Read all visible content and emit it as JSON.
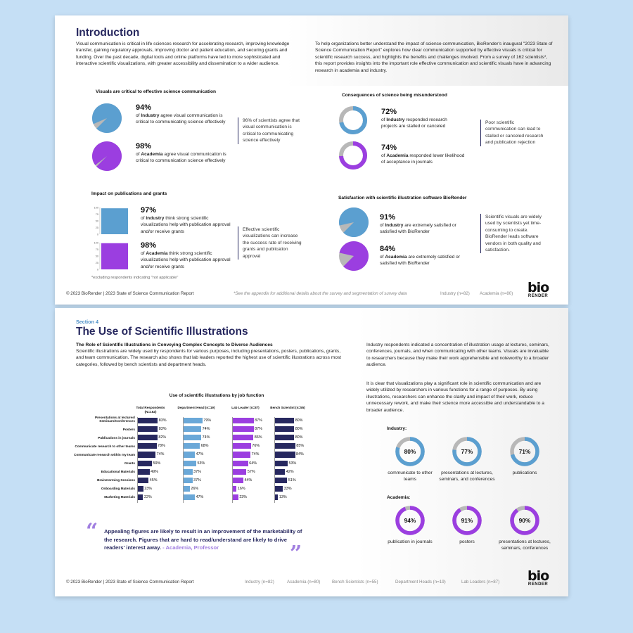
{
  "page1": {
    "title": "Introduction",
    "intro_left": "Visual communication is critical in life sciences research for accelerating research, improving knowledge transfer, gaining regulatory approvals, improving doctor and patient education, and securing grants and funding. Over the past decade, digital tools and online platforms have led to more sophisticated and interactive scientific visualizations, with greater accessibility and dissemination to a wider audience.",
    "intro_right": "To help organizations better understand the impact of science communication, BioRender's inaugural \"2023 State of Science Communication Report\" explores how clear communication supported by effective visuals is critical for scientific research success, and highlights the benefits and challenges involved. From a survey of 162 scientists*, this report provides insights into the important role effective communication and scientific visuals have in advancing research in academia and industry.",
    "visuals": {
      "heading": "Visuals are critical to effective science communication",
      "industry_pct": "94%",
      "industry_pre": "of ",
      "industry_bold": "Industry",
      "industry_rest": " agree visual communication is critical to communicating science effectively",
      "academia_pct": "98%",
      "academia_pre": "of ",
      "academia_bold": "Academia",
      "academia_rest": " agree visual communication is critical to communication science effectively",
      "sidebar": "96% of scientists agree that visual communication is critical to communicating science effectively",
      "industry_value": 94,
      "academia_value": 98
    },
    "consequences": {
      "heading": "Consequences of science being misunderstood",
      "industry_pct": "72%",
      "industry_pre": "of ",
      "industry_bold": "Industry",
      "industry_rest": " responded research projects are stalled or canceled",
      "academia_pct": "74%",
      "academia_pre": "of ",
      "academia_bold": "Academia",
      "academia_rest": " responded lower likelihood of acceptance in journals",
      "sidebar": "Poor scientific communication can lead to stalled or canceled research and publication rejection",
      "industry_value": 72,
      "academia_value": 74
    },
    "impact": {
      "heading": "Impact on publications and grants",
      "axis_ticks": [
        "100",
        "75",
        "50",
        "25",
        "0"
      ],
      "industry_pct": "97%",
      "industry_pre": "of ",
      "industry_bold": "Industry",
      "industry_rest": " think strong scientific visualizations help with publication approval and/or receive grants",
      "academia_pct": "98%",
      "academia_pre": "of ",
      "academia_bold": "Academia",
      "academia_rest": " think strong scientific visualizations help with publication approval and/or receive grants",
      "sidebar": "Effective scientific visualizations can increase the success rate of receiving grants and publication approval",
      "note": "*excluding respondents indicating \"not applicable\"",
      "industry_value": 97,
      "academia_value": 98
    },
    "satisfaction": {
      "heading": "Satisfaction with scientific illustration software BioRender",
      "industry_pct": "91%",
      "industry_pre": "of ",
      "industry_bold": "Industry",
      "industry_rest": " are extremely satisfied or satisfied with BioRender",
      "academia_pct": "84%",
      "academia_pre": "of ",
      "academia_bold": "Academia",
      "academia_rest": " are extremely satisfied or satisfied with BioRender",
      "sidebar": "Scientific visuals are widely used by scientists yet time-consuming to create. BioRender leads software vendors in both quality and satisfaction.",
      "industry_value": 91,
      "academia_value": 84
    },
    "footer_left": "© 2023 BioRender | 2023 State of Science Communication Report",
    "footer_note": "*See the appendix for additional details about the survey and segmentation of survey data",
    "footer_industry": "Industry (n=82)",
    "footer_academia": "Academia (n=80)",
    "logo_top": "bio",
    "logo_bottom": "RENDER"
  },
  "page2": {
    "section": "Section 4",
    "title": "The Use of Scientific Illustrations",
    "subtitle": "The Role of Scientific Illustrations in Conveying Complex Concepts to Diverse Audiences",
    "body": "Scientific illustrations are widely used by respondents for various purposes, including presentations, posters, publications, grants, and team communication. The research also shows that lab leaders reported the highest use of scientific illustrations across most categories, followed by bench scientists and department heads.",
    "right_p1": "Industry respondents indicated a concentration of illustration usage at lectures, seminars, conferences, journals, and when communicating with other teams. Visuals are invaluable to researchers because they make their work apprehensible and noteworthy to a broader audience.",
    "right_p2": "It is clear that visualizations play a significant role in scientific communication and are widely utilized by researchers in various functions for a range of purposes. By using illustrations, researchers can enhance the clarity and impact of their work, reduce unnecessary rework, and make their science more accessible and understandable to a broader audience.",
    "industry_label": "Industry:",
    "academia_label": "Academia:",
    "industry_donuts": [
      {
        "pct": "80%",
        "value": 80,
        "label": "communicate to other teams"
      },
      {
        "pct": "77%",
        "value": 77,
        "label": "presentations at lectures, seminars, and conferences"
      },
      {
        "pct": "71%",
        "value": 71,
        "label": "publications"
      }
    ],
    "academia_donuts": [
      {
        "pct": "94%",
        "value": 94,
        "label": "publication in journals"
      },
      {
        "pct": "91%",
        "value": 91,
        "label": "posters"
      },
      {
        "pct": "90%",
        "value": 90,
        "label": "presentations at lectures, seminars, conferences"
      }
    ],
    "quote": "Appealing figures are likely to result in an improvement of the marketability of the research. Figures that are hard to read/understand are likely to drive readers' interest away.",
    "quote_attr": " - Academia, Professor",
    "footer_left": "© 2023 BioRender | 2023 State of Science Communication Report",
    "footer_groups": [
      "Industry (n=82)",
      "Academia (n=80)",
      "Bench Scientists (n=55)",
      "Department Heads (n=19)",
      "Lab Leaders (n=87)"
    ],
    "logo_top": "bio",
    "logo_bottom": "RENDER"
  },
  "colors": {
    "navy": "#27285f",
    "blue": "#5b9fd0",
    "lightblue": "#6aa8d8",
    "purple": "#9b3ee0",
    "grey": "#b8b8b8"
  },
  "chart_data": {
    "type": "bar",
    "title": "Use of scientific illustrations by job function",
    "categories": [
      "Presentations at lectures/ Seminars/Conferences",
      "Posters",
      "Publications in journals",
      "Communicate research to other teams",
      "Communicate research within my team",
      "Grants",
      "Educational Materials",
      "Brainstorming Sessions",
      "Onboarding Materials",
      "Marketing Materials"
    ],
    "series": [
      {
        "name": "Total Respondents (N=162)",
        "values": [
          83,
          83,
          82,
          78,
          74,
          59,
          49,
          45,
          23,
          22
        ]
      },
      {
        "name": "Department Head (n=19)",
        "values": [
          79,
          74,
          74,
          68,
          47,
          53,
          37,
          37,
          26,
          47
        ]
      },
      {
        "name": "Lab Leader (n=87)",
        "values": [
          87,
          87,
          86,
          76,
          74,
          64,
          57,
          44,
          16,
          23
        ]
      },
      {
        "name": "Bench Scientist (n=55)",
        "values": [
          80,
          80,
          80,
          85,
          84,
          53,
          42,
          51,
          33,
          13
        ]
      }
    ]
  }
}
